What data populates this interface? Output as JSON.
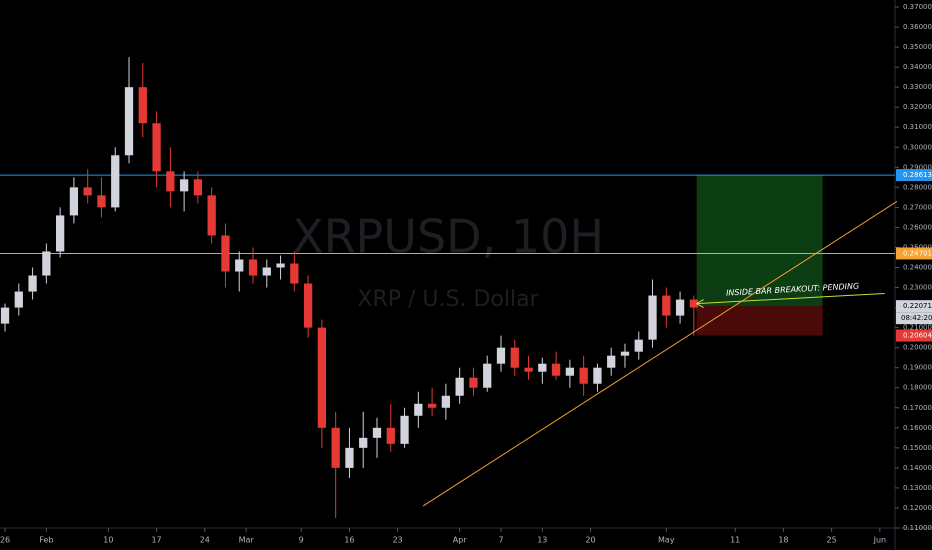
{
  "chart_data": {
    "type": "candlestick",
    "title": "XRPUSD, 10H",
    "subtitle": "XRP / U.S. Dollar",
    "x": [
      0,
      2,
      4,
      6,
      8,
      10,
      12,
      14,
      16,
      18,
      20,
      22,
      24,
      26,
      28,
      30,
      32,
      34,
      36,
      38,
      40,
      42,
      44,
      46,
      48,
      50,
      52,
      54,
      56,
      58,
      60,
      62,
      64,
      66,
      68,
      70,
      72,
      74,
      76,
      78,
      80,
      82,
      84,
      86,
      88,
      90,
      92,
      94,
      96,
      98,
      100
    ],
    "open": [
      0.212,
      0.22,
      0.228,
      0.236,
      0.248,
      0.266,
      0.28,
      0.276,
      0.27,
      0.296,
      0.33,
      0.312,
      0.288,
      0.278,
      0.284,
      0.276,
      0.256,
      0.238,
      0.244,
      0.236,
      0.24,
      0.242,
      0.232,
      0.21,
      0.16,
      0.14,
      0.15,
      0.155,
      0.16,
      0.152,
      0.166,
      0.172,
      0.17,
      0.176,
      0.185,
      0.18,
      0.192,
      0.2,
      0.19,
      0.188,
      0.192,
      0.186,
      0.19,
      0.182,
      0.19,
      0.196,
      0.198,
      0.204,
      0.226,
      0.216,
      0.224
    ],
    "high": [
      0.222,
      0.232,
      0.24,
      0.252,
      0.27,
      0.285,
      0.289,
      0.285,
      0.3,
      0.345,
      0.342,
      0.318,
      0.3,
      0.288,
      0.288,
      0.28,
      0.262,
      0.248,
      0.25,
      0.244,
      0.246,
      0.248,
      0.236,
      0.214,
      0.168,
      0.16,
      0.168,
      0.165,
      0.172,
      0.17,
      0.178,
      0.18,
      0.182,
      0.19,
      0.19,
      0.196,
      0.206,
      0.204,
      0.196,
      0.195,
      0.198,
      0.194,
      0.196,
      0.192,
      0.2,
      0.202,
      0.208,
      0.234,
      0.23,
      0.228,
      0.226
    ],
    "low": [
      0.208,
      0.216,
      0.224,
      0.232,
      0.245,
      0.262,
      0.272,
      0.265,
      0.268,
      0.292,
      0.305,
      0.28,
      0.27,
      0.268,
      0.272,
      0.252,
      0.23,
      0.228,
      0.232,
      0.23,
      0.234,
      0.228,
      0.205,
      0.15,
      0.115,
      0.135,
      0.14,
      0.145,
      0.148,
      0.15,
      0.16,
      0.166,
      0.164,
      0.172,
      0.176,
      0.178,
      0.188,
      0.186,
      0.184,
      0.182,
      0.184,
      0.18,
      0.176,
      0.178,
      0.186,
      0.19,
      0.194,
      0.2,
      0.21,
      0.212,
      0.206
    ],
    "close": [
      0.22,
      0.228,
      0.236,
      0.248,
      0.266,
      0.28,
      0.276,
      0.27,
      0.296,
      0.33,
      0.312,
      0.288,
      0.278,
      0.284,
      0.276,
      0.256,
      0.238,
      0.244,
      0.236,
      0.24,
      0.242,
      0.232,
      0.21,
      0.16,
      0.14,
      0.15,
      0.155,
      0.16,
      0.152,
      0.166,
      0.172,
      0.17,
      0.176,
      0.185,
      0.18,
      0.192,
      0.2,
      0.19,
      0.188,
      0.192,
      0.186,
      0.19,
      0.182,
      0.19,
      0.196,
      0.198,
      0.204,
      0.226,
      0.216,
      0.224,
      0.22
    ],
    "up_color": "#d1d4dc",
    "down_color": "#e53935",
    "xlim": [
      -0.73,
      129.2
    ],
    "ylim": [
      0.11,
      0.3735
    ],
    "xticks": [
      {
        "value": 0,
        "label": "26"
      },
      {
        "value": 6,
        "label": "Feb"
      },
      {
        "value": 15,
        "label": "10"
      },
      {
        "value": 22,
        "label": "17"
      },
      {
        "value": 29,
        "label": "24"
      },
      {
        "value": 35,
        "label": "Mar"
      },
      {
        "value": 43,
        "label": "9"
      },
      {
        "value": 50,
        "label": "16"
      },
      {
        "value": 57,
        "label": "23"
      },
      {
        "value": 66,
        "label": "Apr"
      },
      {
        "value": 72,
        "label": "7"
      },
      {
        "value": 78,
        "label": "13"
      },
      {
        "value": 85,
        "label": "20"
      },
      {
        "value": 96,
        "label": "May"
      },
      {
        "value": 106,
        "label": "11"
      },
      {
        "value": 113,
        "label": "18"
      },
      {
        "value": 120,
        "label": "25"
      },
      {
        "value": 127,
        "label": "Jun"
      }
    ],
    "yticks": [
      {
        "value": 0.11,
        "label": "0.11000"
      },
      {
        "value": 0.12,
        "label": "0.12000"
      },
      {
        "value": 0.13,
        "label": "0.13000"
      },
      {
        "value": 0.14,
        "label": "0.14000"
      },
      {
        "value": 0.15,
        "label": "0.15000"
      },
      {
        "value": 0.16,
        "label": "0.16000"
      },
      {
        "value": 0.17,
        "label": "0.17000"
      },
      {
        "value": 0.18,
        "label": "0.18000"
      },
      {
        "value": 0.19,
        "label": "0.19000"
      },
      {
        "value": 0.2,
        "label": "0.20000"
      },
      {
        "value": 0.21,
        "label": "0.21000"
      },
      {
        "value": 0.22,
        "label": "0.22000"
      },
      {
        "value": 0.23,
        "label": "0.23000"
      },
      {
        "value": 0.24,
        "label": "0.24000"
      },
      {
        "value": 0.25,
        "label": "0.25000"
      },
      {
        "value": 0.26,
        "label": "0.26000"
      },
      {
        "value": 0.27,
        "label": "0.27000"
      },
      {
        "value": 0.28,
        "label": "0.28000"
      },
      {
        "value": 0.29,
        "label": "0.29000"
      },
      {
        "value": 0.3,
        "label": "0.30000"
      },
      {
        "value": 0.31,
        "label": "0.31000"
      },
      {
        "value": 0.32,
        "label": "0.32000"
      },
      {
        "value": 0.33,
        "label": "0.33000"
      },
      {
        "value": 0.34,
        "label": "0.34000"
      },
      {
        "value": 0.35,
        "label": "0.35000"
      },
      {
        "value": 0.36,
        "label": "0.36000"
      },
      {
        "value": 0.37,
        "label": "0.37000"
      }
    ],
    "horizontal_lines": [
      {
        "value": 0.28613,
        "color": "#2196f3"
      },
      {
        "value": 0.24701,
        "color": "#f7a234"
      }
    ],
    "position": {
      "x": [
        100.4,
        118.7
      ],
      "target": 0.28613,
      "entry": 0.22071,
      "stop": 0.20604,
      "profit_color": "#0d3d12",
      "loss_color": "#4a0a0a"
    },
    "countdown": "08:42:20",
    "trend_lines": [
      {
        "x": [
          60.7,
          129.5
        ],
        "y": [
          0.121,
          0.273
        ],
        "color": "#f7a234"
      },
      {
        "x": [
          100.4,
          127.7
        ],
        "y": [
          0.222,
          0.227
        ],
        "color": "#cddc39",
        "label": "INSIDE BAR BREAKOUT: PENDING"
      }
    ]
  }
}
